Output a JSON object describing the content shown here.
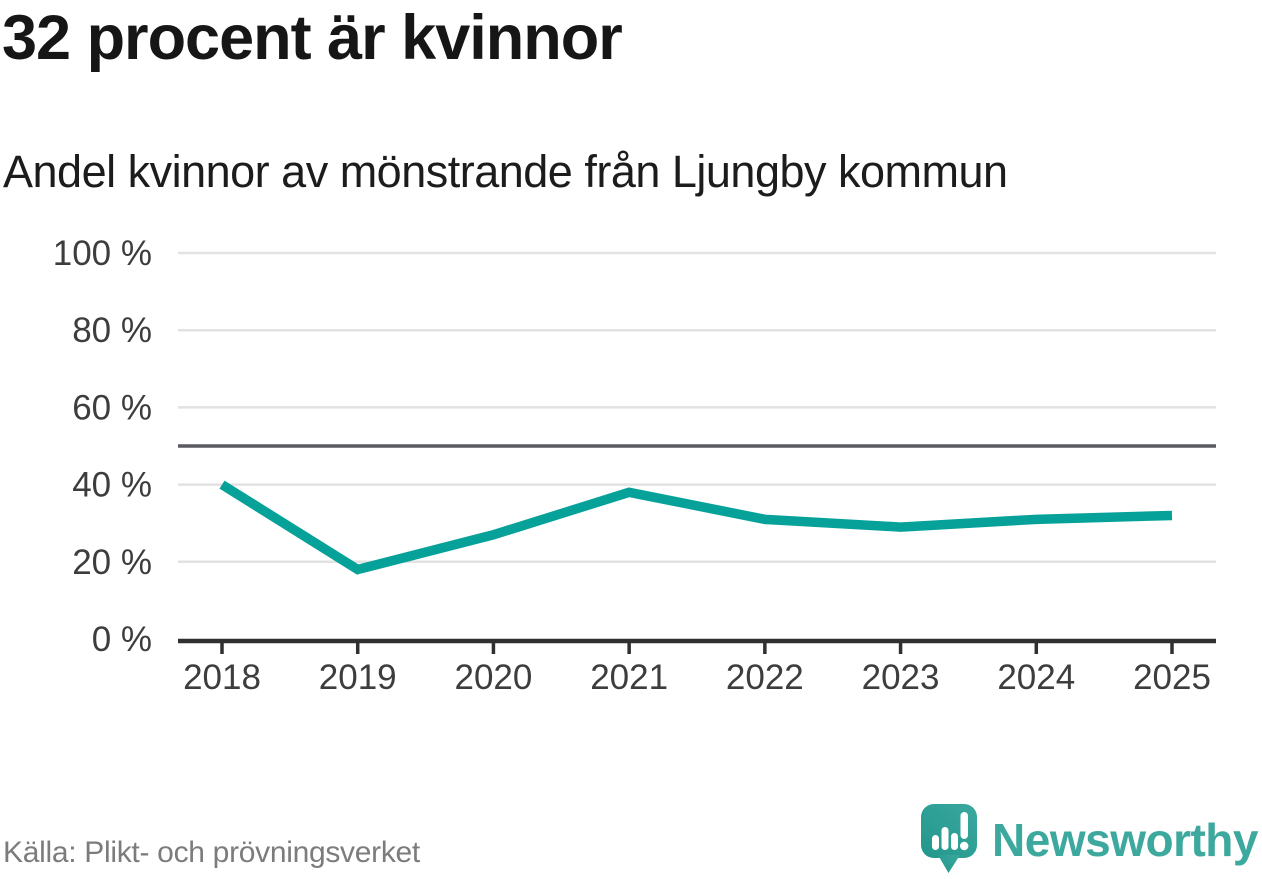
{
  "header": {
    "title": "32 procent är kvinnor",
    "subtitle": "Andel kvinnor av mönstrande från Ljungby kommun"
  },
  "footer": {
    "source": "Källa: Plikt- och prövningsverket",
    "brand": "Newsworthy"
  },
  "colors": {
    "accent_line": "#06a29a",
    "reference_line": "#5a5b62",
    "gridline": "#e2e2e2",
    "axis": "#303030",
    "tick_label": "#3d3d3d",
    "source_text": "#7c7c7c",
    "brand_teal": "#3da89d",
    "icon_teal_light": "#3aa89e",
    "icon_teal_dark": "#23978d"
  },
  "chart_data": {
    "type": "line",
    "title": "32 procent är kvinnor",
    "subtitle": "Andel kvinnor av mönstrande från Ljungby kommun",
    "categories": [
      "2018",
      "2019",
      "2020",
      "2021",
      "2022",
      "2023",
      "2024",
      "2025"
    ],
    "series": [
      {
        "name": "Andel kvinnor av mönstrande",
        "values": [
          40,
          18,
          27,
          38,
          31,
          29,
          31,
          32
        ]
      }
    ],
    "unit": "%",
    "ylim": [
      0,
      100
    ],
    "yticks": [
      0,
      20,
      40,
      60,
      80,
      100
    ],
    "ytick_labels": [
      "0 %",
      "20 %",
      "40 %",
      "60 %",
      "80 %",
      "100 %"
    ],
    "reference_line": 50,
    "grid": true,
    "legend_position": "none",
    "latest_value_label": "32"
  }
}
